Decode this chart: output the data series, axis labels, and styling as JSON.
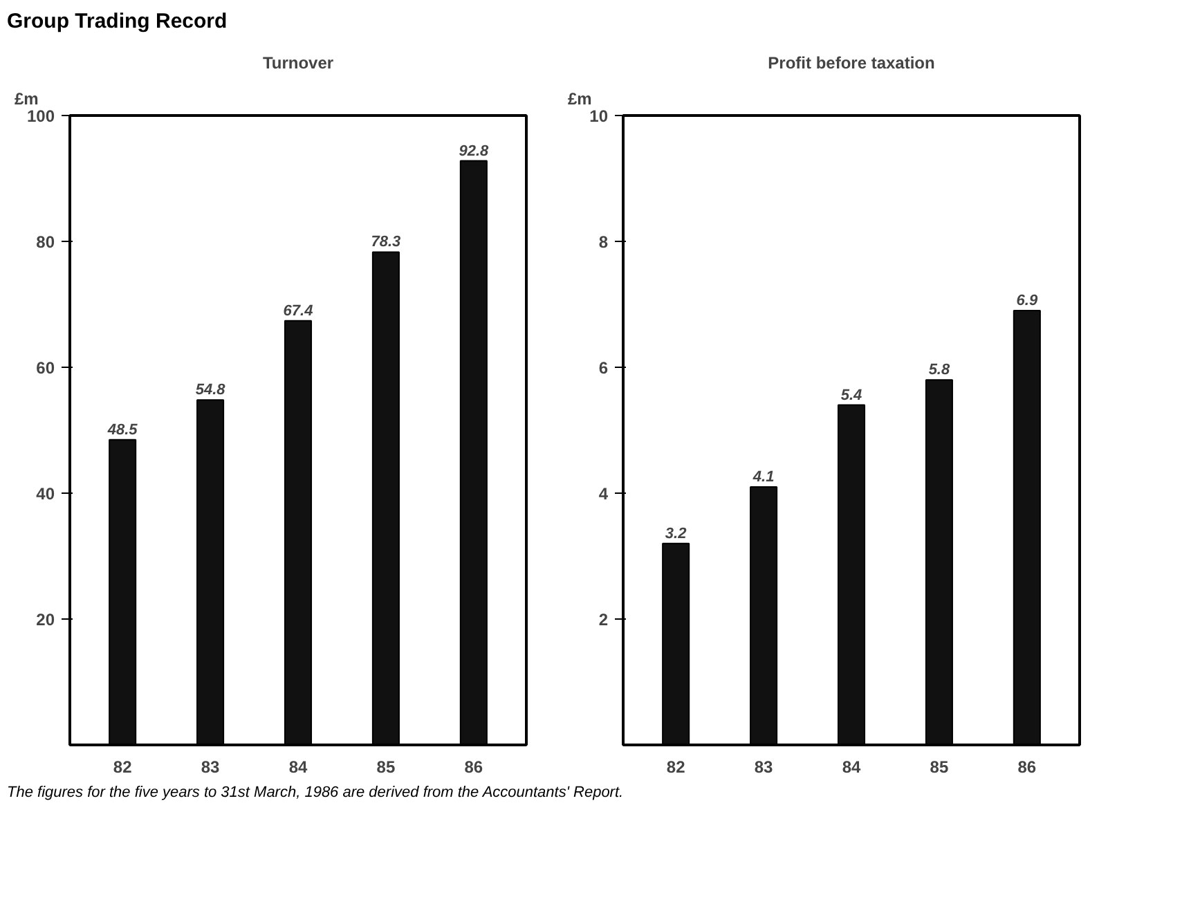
{
  "chart_data": [
    {
      "type": "bar",
      "title": "Turnover",
      "ylabel": "£m",
      "annotations": [
        "Group Trading Record"
      ],
      "categories": [
        "82",
        "83",
        "84",
        "85",
        "86"
      ],
      "values": [
        48.5,
        54.8,
        67.4,
        78.3,
        92.8
      ],
      "color": "#111111",
      "data_labels": true,
      "ylim": [
        0,
        100
      ],
      "yticks": [
        20,
        40,
        60,
        80,
        100
      ],
      "grid": false
    },
    {
      "type": "bar",
      "title": "Profit before taxation",
      "ylabel": "£m",
      "annotations": [
        "The figures for the five years to 31st March, 1986 are derived from the Accountants' Report."
      ],
      "categories": [
        "82",
        "83",
        "84",
        "85",
        "86"
      ],
      "values": [
        3.2,
        4.1,
        5.4,
        5.8,
        6.9
      ],
      "color": "#111111",
      "data_labels": true,
      "ylim": [
        0,
        10
      ],
      "yticks": [
        2,
        4,
        6,
        8,
        10
      ],
      "grid": false
    }
  ]
}
